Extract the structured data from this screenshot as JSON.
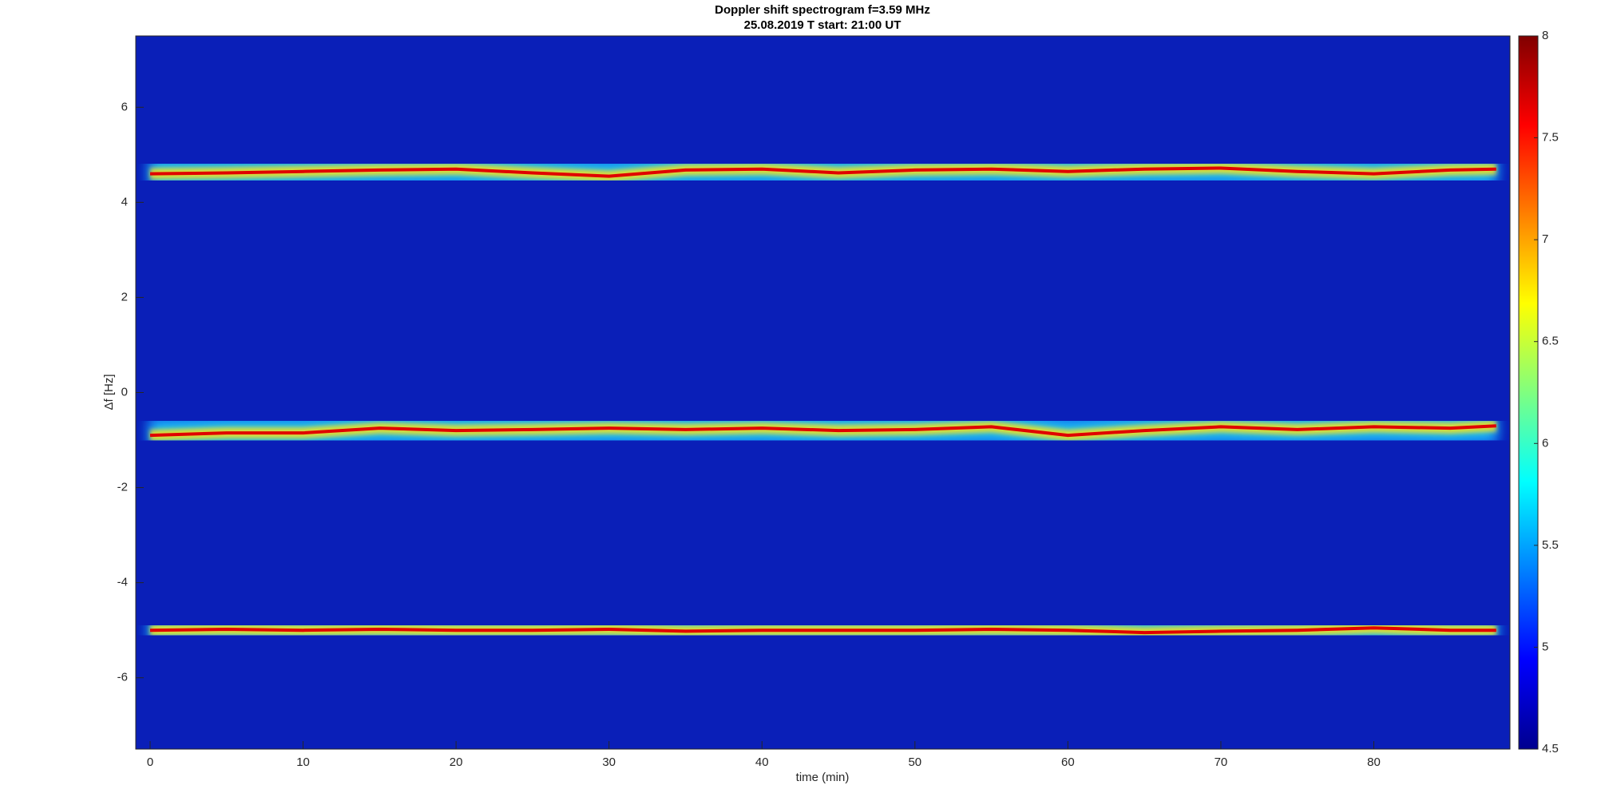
{
  "chart_data": {
    "type": "spectrogram",
    "title": "Doppler shift spectrogram f=3.59 MHz",
    "subtitle": "25.08.2019    T start: 21:00 UT",
    "x_label": "time (min)",
    "y_label": "Δf [Hz]",
    "xlim": [
      -0.94,
      88.9
    ],
    "ylim": [
      -7.5,
      7.5
    ],
    "xticks": [
      0,
      10,
      20,
      30,
      40,
      50,
      60,
      70,
      80
    ],
    "yticks": [
      -6,
      -4,
      -2,
      0,
      2,
      4,
      6
    ],
    "x": [
      0,
      5,
      10,
      15,
      20,
      25,
      30,
      35,
      40,
      45,
      50,
      55,
      60,
      65,
      70,
      75,
      80,
      85,
      88
    ],
    "series": [
      {
        "color": "#e00000",
        "values": [
          4.6,
          4.62,
          4.65,
          4.68,
          4.7,
          4.62,
          4.55,
          4.68,
          4.7,
          4.62,
          4.68,
          4.7,
          4.65,
          4.7,
          4.72,
          4.65,
          4.6,
          4.68,
          4.7
        ]
      },
      {
        "color": "#e00000",
        "values": [
          -0.9,
          -0.85,
          -0.85,
          -0.75,
          -0.8,
          -0.78,
          -0.75,
          -0.78,
          -0.75,
          -0.8,
          -0.78,
          -0.72,
          -0.9,
          -0.8,
          -0.72,
          -0.78,
          -0.72,
          -0.75,
          -0.7
        ]
      },
      {
        "color": "#e00000",
        "values": [
          -5.0,
          -4.98,
          -5.0,
          -4.98,
          -5.0,
          -5.0,
          -4.98,
          -5.02,
          -5.0,
          -5.0,
          -5.0,
          -4.98,
          -5.0,
          -5.05,
          -5.02,
          -5.0,
          -4.95,
          -5.0,
          -5.0
        ]
      }
    ],
    "colorbar": {
      "colormap": "jet",
      "clim": [
        4.5,
        8
      ],
      "ticks": [
        4.5,
        5,
        5.5,
        6,
        6.5,
        7,
        7.5,
        8
      ]
    }
  }
}
